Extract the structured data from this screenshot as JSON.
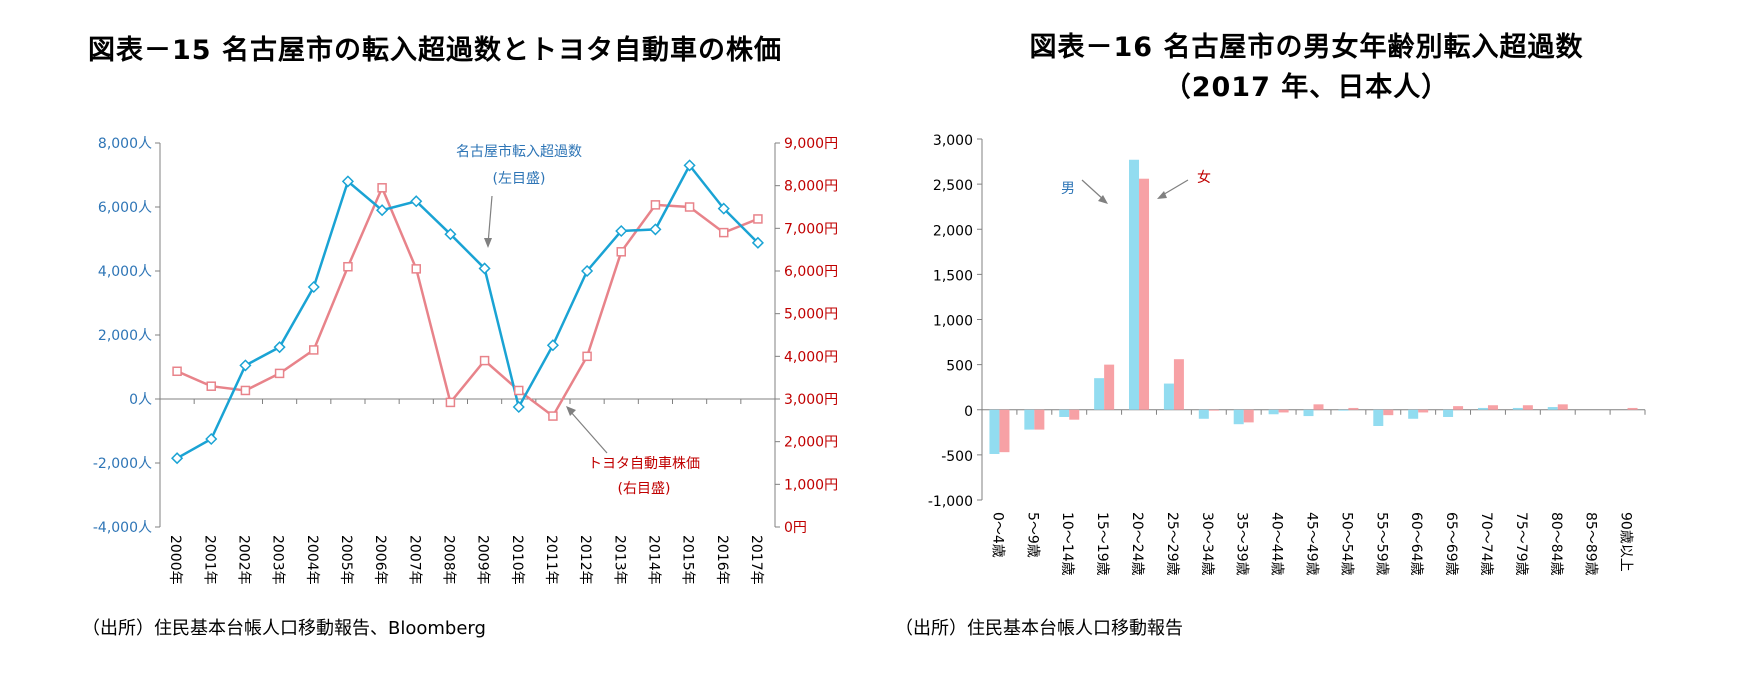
{
  "left": {
    "title": "図表－15  名古屋市の転入超過数とトヨタ自動車の株価",
    "source": "（出所）住民基本台帳人口移動報告、Bloomberg",
    "annotations": {
      "migration_line1": "名古屋市転入超過数",
      "migration_line2": "(左目盛)",
      "stock_line1": "トヨタ自動車株価",
      "stock_line2": "(右目盛)"
    },
    "colors": {
      "migration": "#1aa3d4",
      "stock": "#e8838a",
      "left_axis": "#2e75b6",
      "right_axis": "#c00000"
    }
  },
  "right": {
    "title_line1": "図表－16  名古屋市の男女年齢別転入超過数",
    "title_line2": "（2017 年、日本人）",
    "source": "（出所）住民基本台帳人口移動報告",
    "annotations": {
      "male": "男",
      "female": "女"
    },
    "colors": {
      "male": "#92dcf0",
      "female": "#f7a1a5",
      "male_label": "#2e75b6",
      "female_label": "#c00000"
    }
  },
  "chart_data": [
    {
      "type": "line",
      "x": [
        "2000年",
        "2001年",
        "2002年",
        "2003年",
        "2004年",
        "2005年",
        "2006年",
        "2007年",
        "2008年",
        "2009年",
        "2010年",
        "2011年",
        "2012年",
        "2013年",
        "2014年",
        "2015年",
        "2016年",
        "2017年"
      ],
      "y_left_ticks": [
        "8,000人",
        "6,000人",
        "4,000人",
        "2,000人",
        "0人",
        "-2,000人",
        "-4,000人"
      ],
      "y_right_ticks": [
        "9,000円",
        "8,000円",
        "7,000円",
        "6,000円",
        "5,000円",
        "4,000円",
        "3,000円",
        "2,000円",
        "1,000円",
        "0円"
      ],
      "ylim_left": [
        -4000,
        8000
      ],
      "ylim_right": [
        0,
        9000
      ],
      "series": [
        {
          "name": "名古屋市転入超過数",
          "axis": "left",
          "values": [
            -1850,
            -1250,
            1050,
            1620,
            3500,
            6800,
            5900,
            6180,
            5150,
            4080,
            -250,
            1680,
            4000,
            5250,
            5300,
            7300,
            5950,
            4880
          ]
        },
        {
          "name": "トヨタ自動車株価",
          "axis": "right",
          "values": [
            3650,
            3300,
            3200,
            3600,
            4150,
            6100,
            7950,
            6050,
            2920,
            3900,
            3200,
            2600,
            4000,
            6450,
            7550,
            7500,
            6900,
            7220
          ]
        }
      ]
    },
    {
      "type": "bar",
      "categories": [
        "0～4歳",
        "5～9歳",
        "10～14歳",
        "15～19歳",
        "20～24歳",
        "25～29歳",
        "30～34歳",
        "35～39歳",
        "40～44歳",
        "45～49歳",
        "50～54歳",
        "55～59歳",
        "60～64歳",
        "65～69歳",
        "70～74歳",
        "75～79歳",
        "80～84歳",
        "85～89歳",
        "90歳以上"
      ],
      "y_ticks": [
        "3,000",
        "2,500",
        "2,000",
        "1,500",
        "1,000",
        "500",
        "0",
        "-500",
        "-1,000"
      ],
      "ylim": [
        -1000,
        3000
      ],
      "series": [
        {
          "name": "男",
          "values": [
            -490,
            -220,
            -80,
            350,
            2770,
            290,
            -100,
            -160,
            -50,
            -70,
            -10,
            -180,
            -100,
            -80,
            20,
            20,
            30,
            0,
            0
          ]
        },
        {
          "name": "女",
          "values": [
            -470,
            -220,
            -110,
            500,
            2560,
            560,
            -10,
            -140,
            -30,
            60,
            20,
            -60,
            -30,
            40,
            50,
            50,
            60,
            0,
            20
          ]
        }
      ]
    }
  ]
}
